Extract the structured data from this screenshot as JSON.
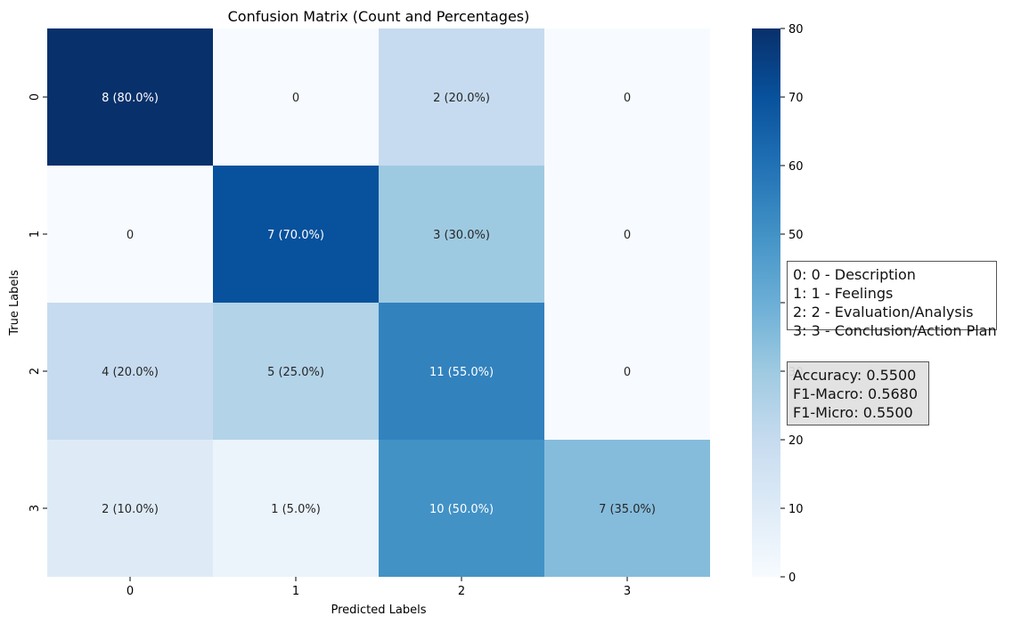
{
  "chart_data": {
    "type": "heatmap",
    "title": "Confusion Matrix (Count and Percentages)",
    "xlabel": "Predicted Labels",
    "ylabel": "True Labels",
    "x_categories": [
      "0",
      "1",
      "2",
      "3"
    ],
    "y_categories": [
      "0",
      "1",
      "2",
      "3"
    ],
    "values": [
      [
        8,
        0,
        2,
        0
      ],
      [
        0,
        7,
        3,
        0
      ],
      [
        4,
        5,
        11,
        0
      ],
      [
        2,
        1,
        10,
        7
      ]
    ],
    "color_values": [
      [
        80.0,
        0.0,
        20.0,
        0.0
      ],
      [
        0.0,
        70.0,
        30.0,
        0.0
      ],
      [
        20.0,
        25.0,
        55.0,
        0.0
      ],
      [
        10.0,
        5.0,
        50.0,
        35.0
      ]
    ],
    "cell_labels": [
      [
        "8 (80.0%)",
        "0",
        "2 (20.0%)",
        "0"
      ],
      [
        "0",
        "7 (70.0%)",
        "3 (30.0%)",
        "0"
      ],
      [
        "4 (20.0%)",
        "5 (25.0%)",
        "11 (55.0%)",
        "0"
      ],
      [
        "2 (10.0%)",
        "1 (5.0%)",
        "10 (50.0%)",
        "7 (35.0%)"
      ]
    ],
    "colorbar": {
      "range": [
        0,
        80
      ],
      "ticks": [
        "0",
        "10",
        "20",
        "30",
        "40",
        "50",
        "60",
        "70",
        "80"
      ],
      "colormap": "Blues"
    }
  },
  "legend": {
    "lines": [
      "0: 0 - Description",
      "1: 1 - Feelings",
      "2: 2 - Evaluation/Analysis",
      "3: 3 - Conclusion/Action Plan"
    ]
  },
  "metrics": {
    "lines": [
      "Accuracy: 0.5500",
      "F1-Macro: 0.5680",
      "F1-Micro: 0.5500"
    ]
  },
  "colors": {
    "text_dark": "#262626",
    "text_light": "#ffffff"
  }
}
